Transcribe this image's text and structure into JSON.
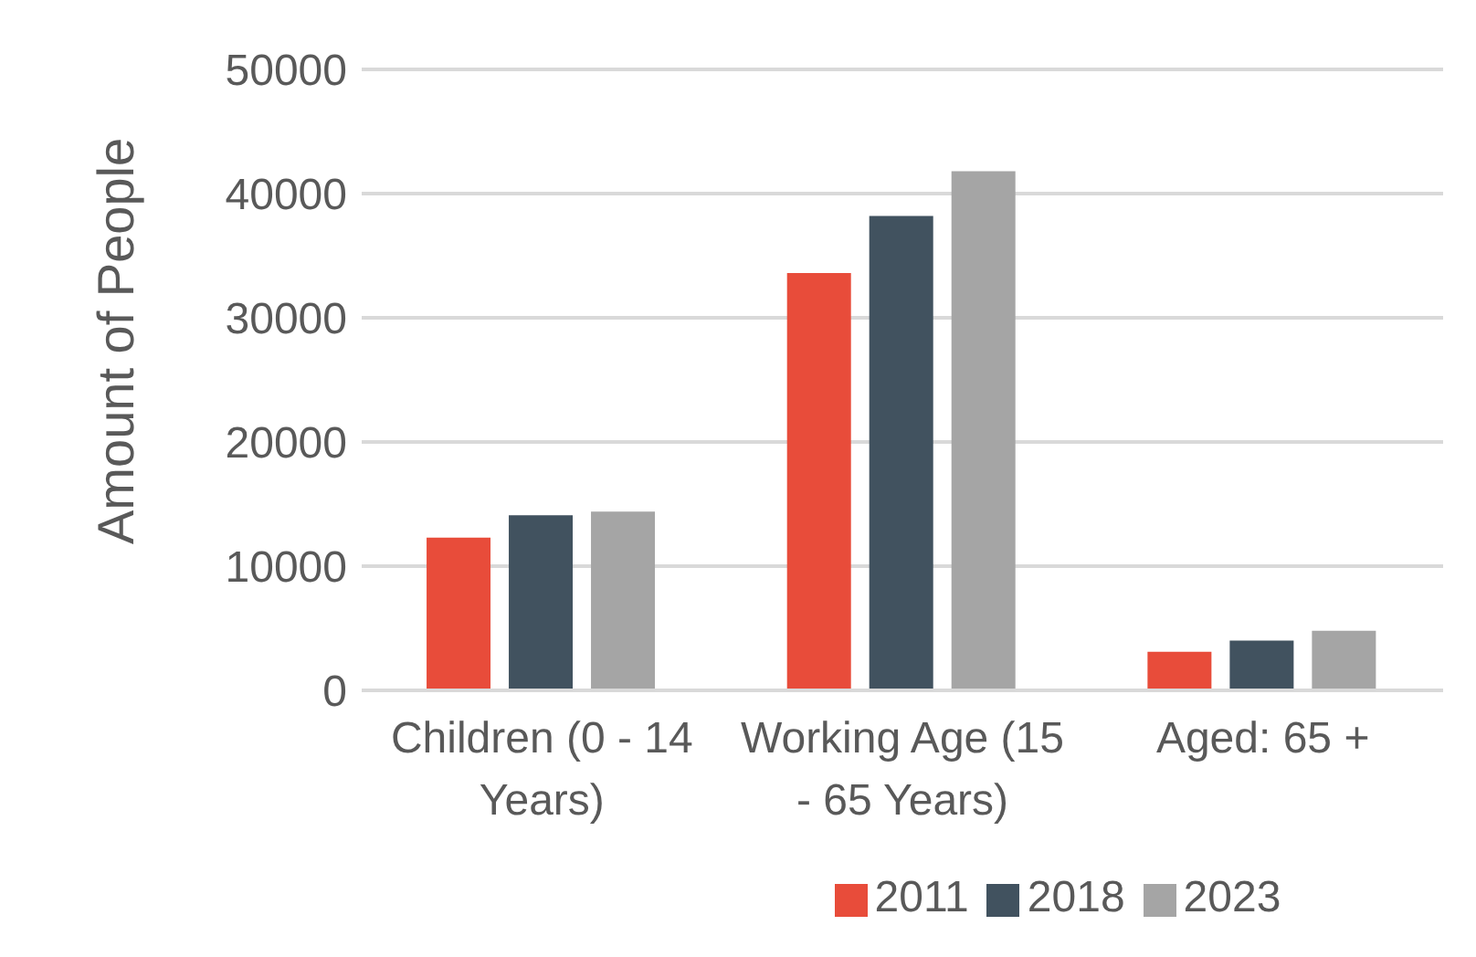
{
  "chart_data": {
    "type": "bar",
    "ylabel": "Amount of People",
    "categories": [
      "Children (0 - 14 Years)",
      "Working Age (15 - 65 Years)",
      "Aged: 65 +"
    ],
    "series": [
      {
        "name": "2011",
        "color": "#e84c3a",
        "values": [
          12300,
          33600,
          3100
        ]
      },
      {
        "name": "2018",
        "color": "#41525f",
        "values": [
          14100,
          38200,
          4000
        ]
      },
      {
        "name": "2023",
        "color": "#a5a5a5",
        "values": [
          14400,
          41800,
          4800
        ]
      }
    ],
    "ylim": [
      0,
      50000
    ],
    "yticks": [
      0,
      10000,
      20000,
      30000,
      40000,
      50000
    ],
    "grid": "y",
    "legend": "bottom"
  }
}
